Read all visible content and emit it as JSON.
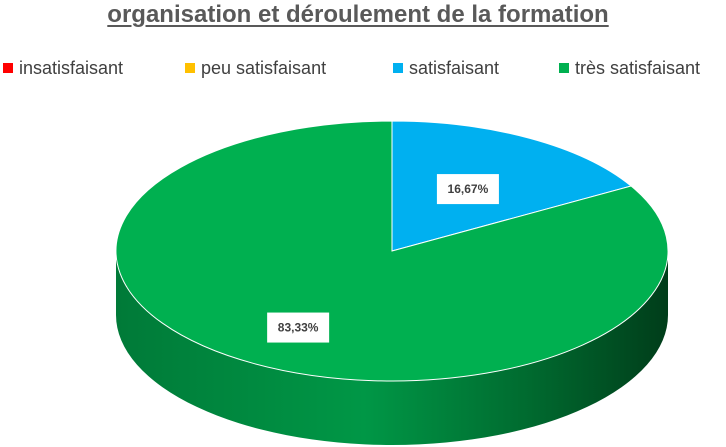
{
  "chart_data": {
    "type": "pie",
    "title": "organisation et déroulement de la formation",
    "legend_position": "top",
    "categories": [
      "insatisfaisant",
      "peu satisfaisant",
      "satisfaisant",
      "très satisfaisant"
    ],
    "values": [
      0,
      0,
      16.67,
      83.33
    ],
    "data_labels": [
      "",
      "",
      "16,67%",
      "83,33%"
    ],
    "colors": [
      "#ff0000",
      "#ffc000",
      "#00b0f0",
      "#00b050"
    ]
  }
}
